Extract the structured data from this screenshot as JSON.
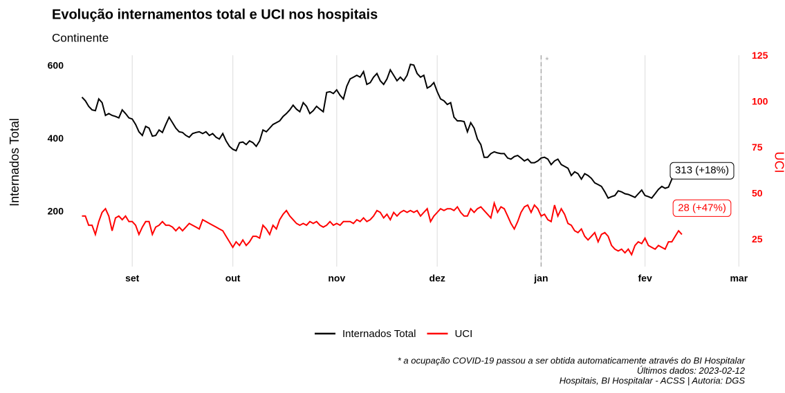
{
  "chart_data": {
    "type": "line",
    "title": "Evolução internamentos total e UCI nos hospitais",
    "subtitle": "Continente",
    "y_label": "Internados Total",
    "y2_label": "UCI",
    "x": [
      -15,
      -14,
      -13,
      -12,
      -11,
      -10,
      -9,
      -8,
      -7,
      -6,
      -5,
      -4,
      -3,
      -2,
      -1,
      0,
      1,
      2,
      3,
      4,
      5,
      6,
      7,
      8,
      9,
      10,
      11,
      12,
      13,
      14,
      15,
      16,
      17,
      18,
      19,
      20,
      21,
      22,
      23,
      24,
      25,
      26,
      27,
      28,
      29,
      30,
      31,
      32,
      33,
      34,
      35,
      36,
      37,
      38,
      39,
      40,
      41,
      42,
      43,
      44,
      45,
      46,
      47,
      48,
      49,
      50,
      51,
      52,
      53,
      54,
      55,
      56,
      57,
      58,
      59,
      60,
      61,
      62,
      63,
      64,
      65,
      66,
      67,
      68,
      69,
      70,
      71,
      72,
      73,
      74,
      75,
      76,
      77,
      78,
      79,
      80,
      81,
      82,
      83,
      84,
      85,
      86,
      87,
      88,
      89,
      90,
      91,
      92,
      93,
      94,
      95,
      96,
      97,
      98,
      99,
      100,
      101,
      102,
      103,
      104,
      105,
      106,
      107,
      108,
      109,
      110,
      111,
      112,
      113,
      114,
      115,
      116,
      117,
      118,
      119,
      120,
      121,
      122,
      123,
      124,
      125,
      126,
      127,
      128,
      129,
      130,
      131,
      132,
      133,
      134,
      135,
      136,
      137,
      138,
      139,
      140,
      141,
      142,
      143,
      144,
      145,
      146,
      147,
      148,
      149,
      150,
      151,
      152,
      153,
      154,
      155,
      156,
      157,
      158,
      159,
      160,
      161,
      162,
      163,
      164
    ],
    "xlim": [
      -18,
      183
    ],
    "xticks": [
      {
        "value": 0,
        "label": "set"
      },
      {
        "value": 30,
        "label": "out"
      },
      {
        "value": 61,
        "label": "nov"
      },
      {
        "value": 91,
        "label": "dez"
      },
      {
        "value": 122,
        "label": "jan"
      },
      {
        "value": 153,
        "label": "fev"
      },
      {
        "value": 181,
        "label": "mar"
      }
    ],
    "ylim": [
      50,
      630
    ],
    "yticks": [
      200,
      400,
      600
    ],
    "y2lim": [
      10.5,
      125.5
    ],
    "y2ticks": [
      25,
      50,
      75,
      100,
      125
    ],
    "grid": true,
    "vline": {
      "x": 122,
      "label": "*"
    },
    "series": [
      {
        "name": "Internados Total",
        "color": "#000000",
        "annotation": "313 (+18%)",
        "values": [
          515,
          505,
          490,
          480,
          478,
          510,
          500,
          465,
          470,
          465,
          462,
          458,
          480,
          470,
          458,
          455,
          440,
          420,
          410,
          435,
          430,
          408,
          410,
          425,
          418,
          440,
          460,
          445,
          430,
          420,
          418,
          410,
          405,
          415,
          418,
          420,
          415,
          420,
          410,
          415,
          405,
          400,
          415,
          395,
          380,
          372,
          368,
          390,
          392,
          385,
          395,
          390,
          380,
          395,
          425,
          420,
          430,
          440,
          445,
          450,
          462,
          470,
          480,
          493,
          482,
          475,
          500,
          490,
          470,
          478,
          490,
          482,
          475,
          528,
          530,
          525,
          535,
          520,
          510,
          545,
          565,
          570,
          575,
          570,
          585,
          550,
          555,
          570,
          580,
          560,
          550,
          565,
          590,
          575,
          560,
          570,
          560,
          575,
          605,
          603,
          580,
          570,
          575,
          540,
          545,
          555,
          530,
          510,
          505,
          495,
          500,
          460,
          450,
          450,
          448,
          420,
          445,
          430,
          400,
          385,
          350,
          350,
          360,
          365,
          362,
          360,
          360,
          348,
          345,
          352,
          355,
          348,
          340,
          345,
          335,
          335,
          340,
          348,
          350,
          345,
          330,
          340,
          345,
          330,
          325,
          320,
          300,
          310,
          305,
          290,
          305,
          300,
          292,
          280,
          275,
          270,
          255,
          238,
          242,
          245,
          258,
          255,
          250,
          248,
          244,
          240,
          250,
          260,
          245,
          242,
          238,
          250,
          262,
          270,
          265,
          268,
          290,
          300,
          312,
          313
        ]
      },
      {
        "name": "UCI",
        "color": "#ff0000",
        "axis": "y2",
        "annotation": "28 (+47%)",
        "values": [
          38,
          38,
          33,
          33,
          28,
          35,
          40,
          42,
          38,
          30,
          37,
          38,
          36,
          38,
          35,
          35,
          33,
          28,
          32,
          35,
          35,
          28,
          32,
          33,
          35,
          33,
          33,
          32,
          30,
          32,
          30,
          32,
          34,
          33,
          32,
          31,
          36,
          35,
          34,
          33,
          32,
          31,
          30,
          27,
          24,
          21,
          24,
          22,
          25,
          22,
          24,
          27,
          27,
          26,
          33,
          31,
          28,
          33,
          31,
          36,
          39,
          41,
          38,
          36,
          34,
          33,
          34,
          33,
          35,
          34,
          35,
          33,
          32,
          33,
          35,
          33,
          34,
          33,
          35,
          35,
          35,
          34,
          36,
          35,
          37,
          35,
          36,
          38,
          41,
          40,
          37,
          39,
          36,
          40,
          38,
          40,
          41,
          40,
          41,
          40,
          41,
          38,
          40,
          42,
          35,
          38,
          40,
          42,
          41,
          42,
          42,
          41,
          43,
          40,
          38,
          38,
          42,
          40,
          42,
          43,
          41,
          39,
          37,
          45,
          40,
          43,
          42,
          38,
          34,
          31,
          35,
          40,
          43,
          44,
          40,
          44,
          42,
          38,
          39,
          36,
          35,
          44,
          38,
          42,
          39,
          34,
          33,
          30,
          29,
          31,
          27,
          25,
          27,
          29,
          24,
          28,
          29,
          27,
          22,
          20,
          19,
          20,
          18,
          20,
          17,
          22,
          24,
          23,
          26,
          22,
          21,
          20,
          22,
          21,
          20,
          24,
          24,
          27,
          30,
          28
        ]
      }
    ],
    "notes": [
      "* a ocupação COVID-19 passou a ser obtida automaticamente através do BI Hospitalar",
      "Últimos dados: 2023-02-12",
      "Hospitais, BI Hospitalar - ACSS | Autoria: DGS"
    ]
  }
}
